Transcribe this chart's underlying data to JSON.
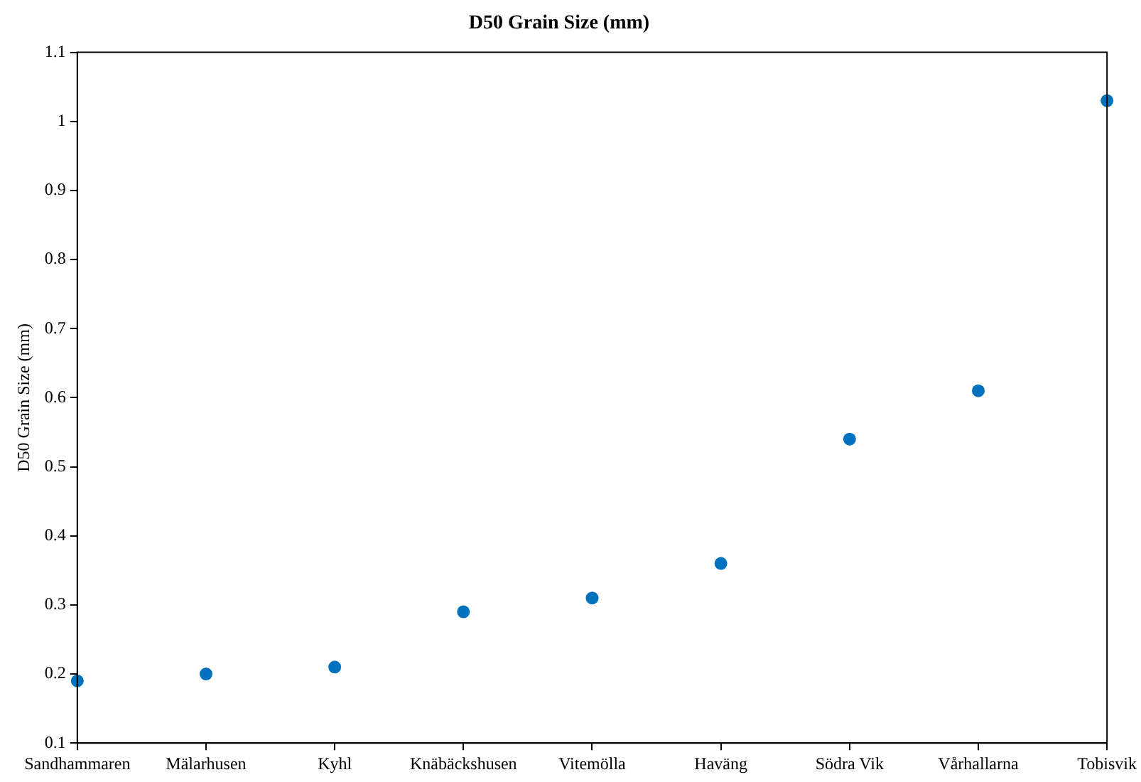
{
  "chart_data": {
    "type": "scatter",
    "title": "D50 Grain Size (mm)",
    "ylabel": "D50 Grain Size (mm)",
    "categories": [
      "Sandhammaren",
      "Mälarhusen",
      "Kyhl",
      "Knäbäckshusen",
      "Vitemölla",
      "Haväng",
      "Södra Vik",
      "Vårhallarna",
      "Tobisvik"
    ],
    "values": [
      0.19,
      0.2,
      0.21,
      0.29,
      0.31,
      0.36,
      0.54,
      0.61,
      1.03
    ],
    "color": "#0072bd",
    "marker": "circle",
    "ylim": [
      0.1,
      1.1
    ],
    "yticks": [
      0.1,
      0.2,
      0.3,
      0.4,
      0.5,
      0.6,
      0.7,
      0.8,
      0.9,
      1,
      1.1
    ]
  }
}
